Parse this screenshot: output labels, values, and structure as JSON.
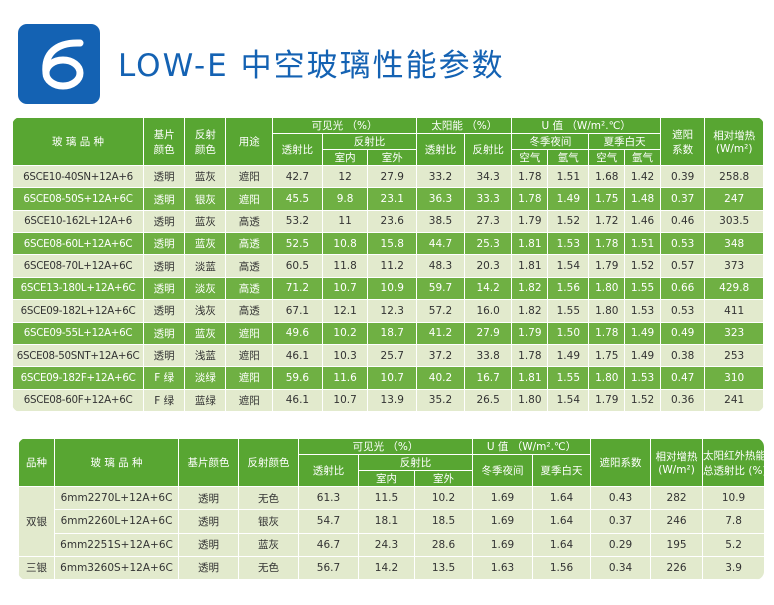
{
  "header": {
    "badge_number": "6",
    "title": "LOW-E 中空玻璃性能参数"
  },
  "table1": {
    "headers": {
      "product": "玻 璃 品 种",
      "substrate_color": "基片颜色",
      "reflect_color": "反射颜色",
      "use": "用途",
      "visible": "可见光 （%）",
      "transmit": "透射比",
      "reflect": "反射比",
      "indoor": "室内",
      "outdoor": "室外",
      "solar": "太阳能 （%）",
      "solar_transmit": "透射比",
      "solar_reflect": "反射比",
      "u_value": "U 值 （W/m².℃）",
      "winter_night": "冬季夜间",
      "summer_day": "夏季白天",
      "air": "空气",
      "argon": "氩气",
      "shading": "遮阳系数",
      "heat_gain": "相对增热 (W/m²)"
    },
    "rows": [
      [
        "6SCE10-40SN+12A+6",
        "透明",
        "蓝灰",
        "遮阳",
        "42.7",
        "12",
        "27.9",
        "33.2",
        "34.3",
        "1.78",
        "1.51",
        "1.68",
        "1.42",
        "0.39",
        "258.8"
      ],
      [
        "6SCE08-50S+12A+6C",
        "透明",
        "银灰",
        "遮阳",
        "45.5",
        "9.8",
        "23.1",
        "36.3",
        "33.3",
        "1.78",
        "1.49",
        "1.75",
        "1.48",
        "0.37",
        "247"
      ],
      [
        "6SCE10-162L+12A+6",
        "透明",
        "蓝灰",
        "高透",
        "53.2",
        "11",
        "23.6",
        "38.5",
        "27.3",
        "1.79",
        "1.52",
        "1.72",
        "1.46",
        "0.46",
        "303.5"
      ],
      [
        "6SCE08-60L+12A+6C",
        "透明",
        "蓝灰",
        "高透",
        "52.5",
        "10.8",
        "15.8",
        "44.7",
        "25.3",
        "1.81",
        "1.53",
        "1.78",
        "1.51",
        "0.53",
        "348"
      ],
      [
        "6SCE08-70L+12A+6C",
        "透明",
        "淡蓝",
        "高透",
        "60.5",
        "11.8",
        "11.2",
        "48.3",
        "20.3",
        "1.81",
        "1.54",
        "1.79",
        "1.52",
        "0.57",
        "373"
      ],
      [
        "6SCE13-180L+12A+6C",
        "透明",
        "淡灰",
        "高透",
        "71.2",
        "10.7",
        "10.9",
        "59.7",
        "14.2",
        "1.82",
        "1.56",
        "1.80",
        "1.55",
        "0.66",
        "429.8"
      ],
      [
        "6SCE09-182L+12A+6C",
        "透明",
        "浅灰",
        "高透",
        "67.1",
        "12.1",
        "12.3",
        "57.2",
        "16.0",
        "1.82",
        "1.55",
        "1.80",
        "1.53",
        "0.53",
        "411"
      ],
      [
        "6SCE09-55L+12A+6C",
        "透明",
        "蓝灰",
        "遮阳",
        "49.6",
        "10.2",
        "18.7",
        "41.2",
        "27.9",
        "1.79",
        "1.50",
        "1.78",
        "1.49",
        "0.49",
        "323"
      ],
      [
        "6SCE08-50SNT+12A+6C",
        "透明",
        "浅蓝",
        "遮阳",
        "46.1",
        "10.3",
        "25.7",
        "37.2",
        "33.8",
        "1.78",
        "1.49",
        "1.75",
        "1.49",
        "0.38",
        "253"
      ],
      [
        "6SCE09-182F+12A+6C",
        "F 绿",
        "淡绿",
        "遮阳",
        "59.6",
        "11.6",
        "10.7",
        "40.2",
        "16.7",
        "1.81",
        "1.55",
        "1.80",
        "1.53",
        "0.47",
        "310"
      ],
      [
        "6SCE08-60F+12A+6C",
        "F 绿",
        "蓝绿",
        "遮阳",
        "46.1",
        "10.7",
        "13.9",
        "35.2",
        "26.5",
        "1.80",
        "1.54",
        "1.79",
        "1.52",
        "0.36",
        "241"
      ]
    ]
  },
  "table2": {
    "headers": {
      "kind": "品种",
      "product": "玻 璃 品 种",
      "substrate_color": "基片颜色",
      "reflect_color": "反射颜色",
      "visible": "可见光 （%）",
      "transmit": "透射比",
      "reflect": "反射比",
      "indoor": "室内",
      "outdoor": "室外",
      "u_value": "U 值 （W/m².℃）",
      "winter_night": "冬季夜间",
      "summer_day": "夏季白天",
      "shading": "遮阳系数",
      "heat_gain": "相对增热 (W/m²)",
      "ir": "太阳红外热能 总透射比 (%)"
    },
    "groups": [
      {
        "kind": "双银",
        "rows": [
          [
            "6mm2270L+12A+6C",
            "透明",
            "无色",
            "61.3",
            "11.5",
            "10.2",
            "1.69",
            "1.64",
            "0.43",
            "282",
            "10.9"
          ],
          [
            "6mm2260L+12A+6C",
            "透明",
            "银灰",
            "54.7",
            "18.1",
            "18.5",
            "1.69",
            "1.64",
            "0.37",
            "246",
            "7.8"
          ],
          [
            "6mm2251S+12A+6C",
            "透明",
            "蓝灰",
            "46.7",
            "24.3",
            "28.6",
            "1.69",
            "1.64",
            "0.29",
            "195",
            "5.2"
          ]
        ]
      },
      {
        "kind": "三银",
        "rows": [
          [
            "6mm3260S+12A+6C",
            "透明",
            "无色",
            "56.7",
            "14.2",
            "13.5",
            "1.63",
            "1.56",
            "0.34",
            "226",
            "3.9"
          ]
        ]
      }
    ]
  }
}
